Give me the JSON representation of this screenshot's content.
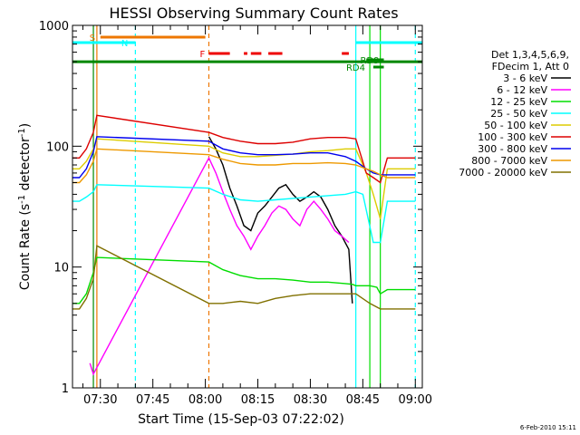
{
  "chart_data": {
    "type": "line",
    "title": "HESSI Observing Summary Count Rates",
    "xlabel": "Start Time (15-Sep-03 07:22:02)",
    "ylabel": "Count Rate (s⁻¹ detector⁻¹)",
    "ylabel_main": "Count Rate (s",
    "ylabel_sup1": "-1",
    "ylabel_mid": " detector",
    "ylabel_sup2": "-1",
    "ylabel_end": ")",
    "y_scale": "log",
    "ylim": [
      1,
      1000
    ],
    "xlim": [
      "07:22:02",
      "09:02:00"
    ],
    "y_ticks": [
      {
        "value": 1,
        "label": "1"
      },
      {
        "value": 10,
        "label": "10"
      },
      {
        "value": 100,
        "label": "100"
      },
      {
        "value": 1000,
        "label": "1000"
      }
    ],
    "x_ticks": [
      {
        "value": "07:30",
        "label": "07:30"
      },
      {
        "value": "07:45",
        "label": "07:45"
      },
      {
        "value": "08:00",
        "label": "08:00"
      },
      {
        "value": "08:15",
        "label": "08:15"
      },
      {
        "value": "08:30",
        "label": "08:30"
      },
      {
        "value": "08:45",
        "label": "08:45"
      },
      {
        "value": "09:00",
        "label": "09:00"
      }
    ],
    "legend": {
      "placement": "right",
      "header": [
        "Det 1,3,4,5,6,9,",
        "FDecim 1, Att 0"
      ],
      "entries": [
        {
          "label": "3 - 6 keV",
          "color": "#000000"
        },
        {
          "label": "6 - 12 keV",
          "color": "#ff00ff"
        },
        {
          "label": "12 - 25 keV",
          "color": "#00dd00"
        },
        {
          "label": "25 - 50 keV",
          "color": "#00ffff"
        },
        {
          "label": "50 - 100 keV",
          "color": "#ddcc00"
        },
        {
          "label": "100 - 300 keV",
          "color": "#dd0000"
        },
        {
          "label": "300 - 800 keV",
          "color": "#0000ee"
        },
        {
          "label": "800 - 7000 keV",
          "color": "#ee9900"
        },
        {
          "label": "7000 - 20000 keV",
          "color": "#807000"
        }
      ]
    },
    "annotations": [
      {
        "label": "S",
        "color": "#ee7700",
        "bar": [
          "07:30",
          "08:00"
        ]
      },
      {
        "label": "N",
        "color": "#00ffff",
        "bar": [
          "07:22",
          "07:40"
        ]
      },
      {
        "label": "F",
        "color": "#ee0000",
        "segments": [
          [
            "08:01",
            "08:07"
          ],
          [
            "08:11",
            "08:12"
          ],
          [
            "08:13",
            "08:16"
          ],
          [
            "08:18",
            "08:22"
          ],
          [
            "08:39",
            "08:41"
          ]
        ]
      },
      {
        "label": "RD9",
        "color": "#008800",
        "bar": [
          "08:46",
          "08:51"
        ]
      },
      {
        "label": "RD4",
        "color": "#008800",
        "bar": [
          "08:48",
          "08:51"
        ]
      }
    ],
    "night_bands": {
      "color": "#00ffff",
      "bars": [
        [
          "07:22",
          "07:40"
        ],
        [
          "08:43",
          "09:02"
        ]
      ]
    },
    "saa_bar": {
      "color": "#008800",
      "range": [
        "07:22",
        "09:02"
      ],
      "y": 500
    },
    "vlines": [
      {
        "x": "07:40",
        "color": "#00ffff",
        "style": "dashed"
      },
      {
        "x": "08:43",
        "color": "#00ffff",
        "style": "solid"
      },
      {
        "x": "09:00",
        "color": "#00ffff",
        "style": "dashed"
      },
      {
        "x": "07:29",
        "color": "#ee7700",
        "style": "solid"
      },
      {
        "x": "08:01",
        "color": "#ee7700",
        "style": "dashed"
      },
      {
        "x": "07:28",
        "color": "#008800",
        "style": "solid"
      },
      {
        "x": "08:47",
        "color": "#00dd00",
        "style": "solid"
      },
      {
        "x": "08:50",
        "color": "#00dd00",
        "style": "solid"
      }
    ],
    "series": [
      {
        "name": "3 - 6 keV",
        "color": "#000000",
        "x": [
          "08:01",
          "08:03",
          "08:05",
          "08:07",
          "08:09",
          "08:11",
          "08:13",
          "08:15",
          "08:17",
          "08:19",
          "08:21",
          "08:23",
          "08:25",
          "08:27",
          "08:29",
          "08:31",
          "08:33",
          "08:35",
          "08:37",
          "08:39",
          "08:41",
          "08:42"
        ],
        "values": [
          120,
          95,
          70,
          45,
          32,
          22,
          20,
          28,
          32,
          38,
          45,
          48,
          40,
          35,
          38,
          42,
          38,
          30,
          22,
          18,
          14,
          5
        ]
      },
      {
        "name": "6 - 12 keV",
        "color": "#ff00ff",
        "x": [
          "07:27",
          "07:28",
          "08:01",
          "08:03",
          "08:05",
          "08:07",
          "08:09",
          "08:11",
          "08:13",
          "08:15",
          "08:17",
          "08:19",
          "08:21",
          "08:23",
          "08:25",
          "08:27",
          "08:29",
          "08:31",
          "08:33",
          "08:35",
          "08:37",
          "08:39",
          "08:41"
        ],
        "values": [
          1.6,
          1.3,
          80,
          60,
          42,
          30,
          22,
          18,
          14,
          18,
          22,
          28,
          32,
          30,
          25,
          22,
          30,
          35,
          30,
          25,
          20,
          18,
          16
        ]
      },
      {
        "name": "12 - 25 keV",
        "color": "#00dd00",
        "x": [
          "07:22",
          "07:24",
          "07:26",
          "07:28",
          "07:29",
          "08:01",
          "08:05",
          "08:10",
          "08:15",
          "08:20",
          "08:25",
          "08:30",
          "08:35",
          "08:40",
          "08:42",
          "08:43",
          "08:44",
          "08:47",
          "08:49",
          "08:50",
          "08:52",
          "08:55",
          "08:58",
          "09:00"
        ],
        "values": [
          5.0,
          5.0,
          6.0,
          9.0,
          12.0,
          11.0,
          9.5,
          8.5,
          8.0,
          8.0,
          7.8,
          7.5,
          7.5,
          7.3,
          7.2,
          7.0,
          7.0,
          7.0,
          6.8,
          6.0,
          6.5,
          6.5,
          6.5,
          6.5
        ]
      },
      {
        "name": "25 - 50 keV",
        "color": "#00ffff",
        "x": [
          "07:22",
          "07:24",
          "07:26",
          "07:28",
          "07:29",
          "08:01",
          "08:05",
          "08:10",
          "08:15",
          "08:20",
          "08:25",
          "08:30",
          "08:35",
          "08:40",
          "08:43",
          "08:45",
          "08:48",
          "08:50",
          "08:52",
          "08:55",
          "08:58",
          "09:00"
        ],
        "values": [
          35,
          35,
          38,
          42,
          48,
          45,
          40,
          36,
          35,
          36,
          37,
          38,
          39,
          40,
          42,
          40,
          16,
          16,
          35,
          35,
          35,
          35
        ]
      },
      {
        "name": "50 - 100 keV",
        "color": "#ddcc00",
        "x": [
          "07:22",
          "07:24",
          "07:26",
          "07:28",
          "07:29",
          "08:01",
          "08:05",
          "08:10",
          "08:15",
          "08:20",
          "08:25",
          "08:30",
          "08:35",
          "08:40",
          "08:43",
          "08:46",
          "08:48",
          "08:50",
          "08:52",
          "08:55",
          "08:58",
          "09:00"
        ],
        "values": [
          65,
          65,
          75,
          95,
          115,
          100,
          88,
          82,
          82,
          84,
          86,
          90,
          92,
          95,
          95,
          60,
          40,
          25,
          65,
          65,
          65,
          65
        ]
      },
      {
        "name": "100 - 300 keV",
        "color": "#dd0000",
        "x": [
          "07:22",
          "07:24",
          "07:26",
          "07:28",
          "07:29",
          "08:01",
          "08:05",
          "08:10",
          "08:15",
          "08:20",
          "08:25",
          "08:30",
          "08:35",
          "08:40",
          "08:43",
          "08:46",
          "08:48",
          "08:50",
          "08:52",
          "08:55",
          "08:58",
          "09:00"
        ],
        "values": [
          80,
          80,
          95,
          130,
          180,
          130,
          118,
          110,
          105,
          105,
          108,
          115,
          118,
          118,
          115,
          60,
          55,
          50,
          80,
          80,
          80,
          80
        ]
      },
      {
        "name": "300 - 800 keV",
        "color": "#0000ee",
        "x": [
          "07:22",
          "07:24",
          "07:26",
          "07:28",
          "07:29",
          "08:01",
          "08:05",
          "08:10",
          "08:15",
          "08:20",
          "08:25",
          "08:30",
          "08:35",
          "08:40",
          "08:43",
          "08:46",
          "08:48",
          "08:50",
          "08:52",
          "08:55",
          "08:58",
          "09:00"
        ],
        "values": [
          55,
          55,
          65,
          90,
          120,
          110,
          95,
          88,
          85,
          85,
          86,
          88,
          88,
          82,
          75,
          65,
          60,
          58,
          58,
          58,
          58,
          58
        ]
      },
      {
        "name": "800 - 7000 keV",
        "color": "#ee9900",
        "x": [
          "07:22",
          "07:24",
          "07:26",
          "07:28",
          "07:29",
          "08:01",
          "08:05",
          "08:10",
          "08:15",
          "08:20",
          "08:25",
          "08:30",
          "08:35",
          "08:40",
          "08:43",
          "08:46",
          "08:48",
          "08:50",
          "08:52",
          "08:55",
          "08:58",
          "09:00"
        ],
        "values": [
          50,
          50,
          58,
          75,
          95,
          85,
          78,
          72,
          70,
          70,
          72,
          72,
          73,
          72,
          70,
          65,
          62,
          58,
          55,
          55,
          55,
          55
        ]
      },
      {
        "name": "7000 - 20000 keV",
        "color": "#807000",
        "x": [
          "07:22",
          "07:24",
          "07:26",
          "07:28",
          "07:29",
          "08:01",
          "08:05",
          "08:10",
          "08:15",
          "08:20",
          "08:25",
          "08:30",
          "08:35",
          "08:40",
          "08:43",
          "08:47",
          "08:50",
          "08:52",
          "08:55",
          "08:58",
          "09:00"
        ],
        "values": [
          4.5,
          4.5,
          5.5,
          8.0,
          15.0,
          5.0,
          5.0,
          5.2,
          5.0,
          5.5,
          5.8,
          6.0,
          6.0,
          6.0,
          6.0,
          5.0,
          4.5,
          4.5,
          4.5,
          4.5,
          4.5
        ]
      }
    ]
  },
  "footer": {
    "timestamp": "6-Feb-2010 15:11"
  }
}
